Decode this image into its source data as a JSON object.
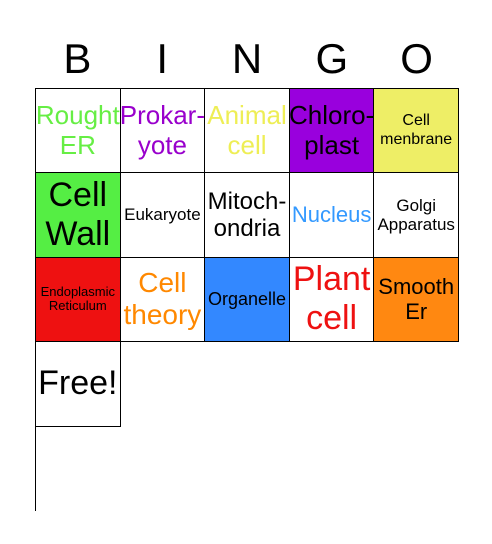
{
  "header": [
    "B",
    "I",
    "N",
    "G",
    "O"
  ],
  "cells": [
    {
      "text": "Rought ER",
      "color": "#66ee44",
      "bg": "#ffffff",
      "size": 26
    },
    {
      "text": "Prokar-yote",
      "color": "#9900cc",
      "bg": "#ffffff",
      "size": 26
    },
    {
      "text": "Animal cell",
      "color": "#eeee55",
      "bg": "#ffffff",
      "size": 26
    },
    {
      "text": "Chloro-plast",
      "color": "#000000",
      "bg": "#9900dd",
      "size": 26
    },
    {
      "text": "Cell menbrane",
      "color": "#000000",
      "bg": "#eeee66",
      "size": 16
    },
    {
      "text": "Cell Wall",
      "color": "#000000",
      "bg": "#55ee44",
      "size": 34
    },
    {
      "text": "Eukaryote",
      "color": "#000000",
      "bg": "#ffffff",
      "size": 17
    },
    {
      "text": "Mitoch-ondria",
      "color": "#000000",
      "bg": "#ffffff",
      "size": 24
    },
    {
      "text": "Nucleus",
      "color": "#3399ff",
      "bg": "#ffffff",
      "size": 22
    },
    {
      "text": "Golgi Apparatus",
      "color": "#000000",
      "bg": "#ffffff",
      "size": 17
    },
    {
      "text": "Endoplasmic Reticulum",
      "color": "#000000",
      "bg": "#ee1111",
      "size": 13
    },
    {
      "text": "Cell theory",
      "color": "#ff8800",
      "bg": "#ffffff",
      "size": 28
    },
    {
      "text": "Organelle",
      "color": "#000000",
      "bg": "#3388ff",
      "size": 18
    },
    {
      "text": "Plant cell",
      "color": "#ee1111",
      "bg": "#ffffff",
      "size": 34
    },
    {
      "text": "Smooth Er",
      "color": "#000000",
      "bg": "#ff8811",
      "size": 22
    },
    {
      "text": "Free!",
      "color": "#000000",
      "bg": "#ffffff",
      "size": 34
    }
  ]
}
